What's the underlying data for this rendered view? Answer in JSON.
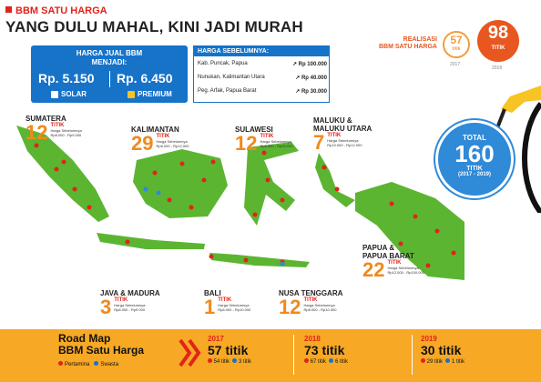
{
  "header": {
    "tag": "BBM SATU HARGA",
    "title": "YANG DULU MAHAL, KINI JADI MURAH"
  },
  "price_box": {
    "title_line1": "HARGA JUAL BBM",
    "title_line2": "MENJADI:",
    "solar_price": "Rp. 5.150",
    "premium_price": "Rp. 6.450",
    "solar_label": "SOLAR",
    "premium_label": "PREMIUM"
  },
  "previous_box": {
    "title": "HARGA SEBELUMNYA:",
    "rows": [
      {
        "place": "Kab. Puncak, Papua",
        "price": "Rp 100.000"
      },
      {
        "place": "Nunukan, Kalimantan Utara",
        "price": "Rp 40.000"
      },
      {
        "place": "Peg. Arfak, Papua Barat",
        "price": "Rp 30.000"
      }
    ]
  },
  "realisasi": {
    "label_line1": "REALISASI",
    "label_line2": "BBM SATU HARGA",
    "c2017_value": "57",
    "c2017_unit": "titik",
    "c2017_year": "2017",
    "c2018_value": "98",
    "c2018_unit": "TITIK",
    "c2018_year": "2018"
  },
  "total": {
    "label": "TOTAL",
    "value": "160",
    "unit": "TITIK",
    "range": "(2017 - 2019)"
  },
  "regions": [
    {
      "name": "SUMATERA",
      "count": "12",
      "unit": "TITIK",
      "note": "Harga Sebelumnya",
      "range": "Rp8.000 - Rp9.000"
    },
    {
      "name": "KALIMANTAN",
      "count": "29",
      "unit": "TITIK",
      "note": "Harga Sebelumnya",
      "range": "Rp6.000 - Rp12.000"
    },
    {
      "name": "SULAWESI",
      "count": "12",
      "unit": "TITIK",
      "note": "Harga Sebelumnya",
      "range": "Rp6.500 - Rp25.000"
    },
    {
      "name": "MALUKU &",
      "name2": "MALUKU UTARA",
      "count": "7",
      "unit": "TITIK",
      "note": "Harga Sebelumnya",
      "range": "Rp10.000 - Rp12.000"
    },
    {
      "name": "PAPUA &",
      "name2": "PAPUA BARAT",
      "count": "22",
      "unit": "TITIK",
      "note": "Harga Sebelumnya",
      "range": "Rp12.000 - Rp100.000"
    },
    {
      "name": "JAVA & MADURA",
      "count": "3",
      "unit": "TITIK",
      "note": "Harga Sebelumnya",
      "range": "Rp8.000 - Rp9.000"
    },
    {
      "name": "BALI",
      "count": "1",
      "unit": "TITIK",
      "note": "Harga Sebelumnya",
      "range": "Rp8.000 - Rp10.000"
    },
    {
      "name": "NUSA TENGGARA",
      "count": "12",
      "unit": "TITIK",
      "note": "Harga Sebelumnya",
      "range": "Rp8.000 - Rp10.000"
    }
  ],
  "roadmap": {
    "line1": "Road Map",
    "line2": "BBM Satu Harga",
    "legend_pertamina": "Pertamina",
    "legend_swasta": "Swasta",
    "years": [
      {
        "year": "2017",
        "value": "57 titik",
        "pertamina": "54 titik",
        "swasta": "3 titik"
      },
      {
        "year": "2018",
        "value": "73 titik",
        "pertamina": "67 titik",
        "swasta": "6 titik"
      },
      {
        "year": "2019",
        "value": "30 titik",
        "pertamina": "29 titik",
        "swasta": "1 titik"
      }
    ]
  },
  "colors": {
    "red": "#e2231a",
    "blue": "#1673c8",
    "orange": "#f08a1c",
    "green": "#5cb531",
    "yellow": "#f7a824"
  }
}
